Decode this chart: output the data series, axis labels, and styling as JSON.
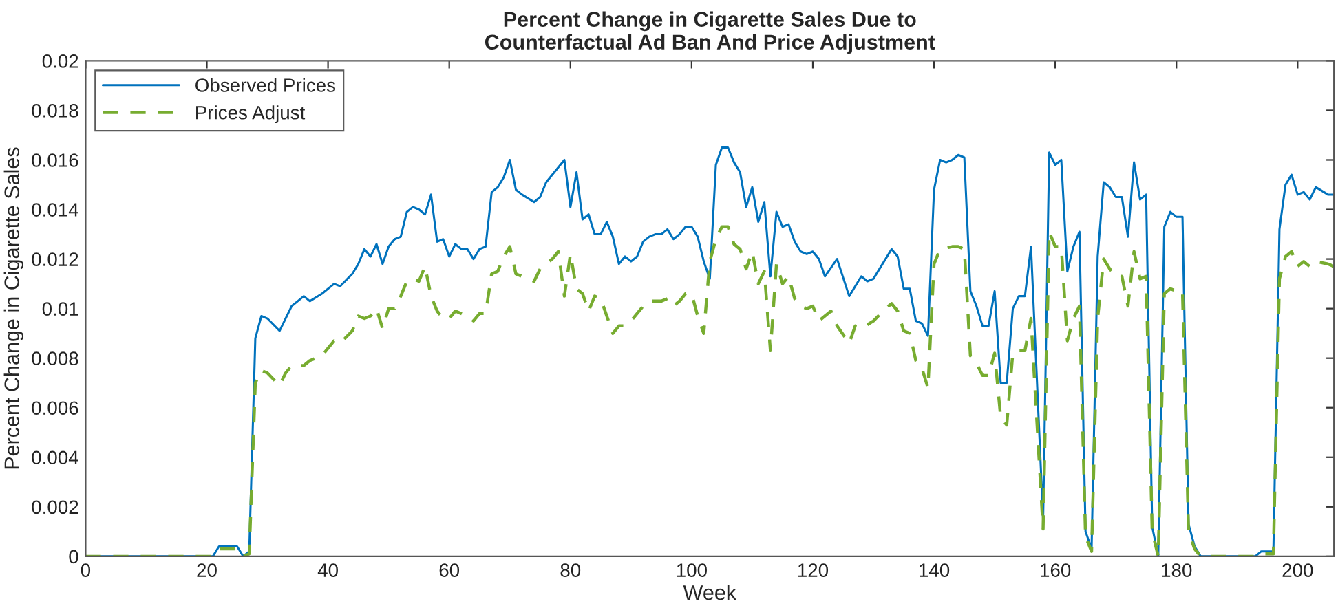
{
  "chart_data": {
    "type": "line",
    "title": "Percent Change in Cigarette Sales Due to\nCounterfactual Ad Ban And Price Adjustment",
    "xlabel": "Week",
    "ylabel": "Percent Change in Cigarette Sales",
    "xlim": [
      0,
      206
    ],
    "xticks": [
      0,
      20,
      40,
      60,
      80,
      100,
      120,
      140,
      160,
      180,
      200
    ],
    "ylim": [
      0,
      0.02
    ],
    "yticks": [
      0,
      0.002,
      0.004,
      0.006,
      0.008,
      0.01,
      0.012,
      0.014,
      0.016,
      0.018,
      0.02
    ],
    "grid": false,
    "legend": "top left",
    "marker": "none",
    "series": [
      {
        "name": "Observed Prices",
        "color": "#0072bd",
        "line_style": "solid",
        "x": [
          0,
          21,
          22,
          25,
          26,
          27,
          28,
          29,
          30,
          32,
          34,
          35,
          36,
          37,
          39,
          41,
          42,
          44,
          45,
          46,
          47,
          48,
          49,
          50,
          51,
          52,
          53,
          54,
          55,
          56,
          57,
          58,
          59,
          60,
          61,
          62,
          63,
          64,
          65,
          66,
          67,
          68,
          69,
          70,
          71,
          72,
          74,
          75,
          76,
          78,
          79,
          80,
          81,
          82,
          83,
          84,
          85,
          86,
          87,
          88,
          89,
          90,
          91,
          92,
          93,
          94,
          95,
          96,
          97,
          98,
          99,
          100,
          101,
          102,
          103,
          104,
          105,
          106,
          107,
          108,
          109,
          110,
          111,
          112,
          113,
          114,
          115,
          116,
          117,
          118,
          119,
          120,
          121,
          122,
          124,
          126,
          128,
          129,
          130,
          132,
          133,
          134,
          135,
          136,
          137,
          138,
          139,
          140,
          141,
          142,
          143,
          144,
          145,
          146,
          147,
          148,
          149,
          150,
          151,
          152,
          153,
          154,
          155,
          156,
          158,
          159,
          160,
          161,
          162,
          163,
          164,
          165,
          166,
          167,
          168,
          169,
          170,
          171,
          172,
          173,
          174,
          175,
          176,
          177,
          178,
          179,
          180,
          181,
          182,
          183,
          184,
          193,
          194,
          196,
          197,
          198,
          199,
          200,
          201,
          202,
          203,
          205,
          206
        ],
        "values": [
          0,
          0,
          0.0004,
          0.0004,
          0,
          0.0002,
          0.0088,
          0.0097,
          0.0096,
          0.0091,
          0.0101,
          0.0103,
          0.0105,
          0.0103,
          0.0106,
          0.011,
          0.0109,
          0.0114,
          0.0118,
          0.0124,
          0.0121,
          0.0126,
          0.0118,
          0.0125,
          0.0128,
          0.0129,
          0.0139,
          0.0141,
          0.014,
          0.0138,
          0.0146,
          0.0127,
          0.0128,
          0.0121,
          0.0126,
          0.0124,
          0.0124,
          0.012,
          0.0124,
          0.0125,
          0.0147,
          0.0149,
          0.0153,
          0.016,
          0.0148,
          0.0146,
          0.0143,
          0.0145,
          0.0151,
          0.0157,
          0.016,
          0.0141,
          0.0155,
          0.0136,
          0.0138,
          0.013,
          0.013,
          0.0135,
          0.0129,
          0.0118,
          0.0121,
          0.0119,
          0.0121,
          0.0127,
          0.0129,
          0.013,
          0.013,
          0.0132,
          0.0128,
          0.013,
          0.0133,
          0.0133,
          0.0129,
          0.0119,
          0.0112,
          0.0158,
          0.0165,
          0.0165,
          0.0159,
          0.0155,
          0.0141,
          0.0149,
          0.0135,
          0.0143,
          0.0113,
          0.0139,
          0.0133,
          0.0134,
          0.0127,
          0.0123,
          0.0122,
          0.0123,
          0.012,
          0.0113,
          0.012,
          0.0105,
          0.0113,
          0.0111,
          0.0112,
          0.012,
          0.0124,
          0.0121,
          0.0108,
          0.0108,
          0.0095,
          0.0094,
          0.0089,
          0.0148,
          0.016,
          0.0159,
          0.016,
          0.0162,
          0.0161,
          0.0107,
          0.0101,
          0.0093,
          0.0093,
          0.0107,
          0.007,
          0.007,
          0.01,
          0.0105,
          0.0105,
          0.0125,
          0.0015,
          0.0163,
          0.0158,
          0.016,
          0.0115,
          0.0125,
          0.0131,
          0.001,
          0.0003,
          0.0121,
          0.0151,
          0.0149,
          0.0145,
          0.0145,
          0.0129,
          0.0159,
          0.0144,
          0.0146,
          0.0012,
          0,
          0.0133,
          0.0139,
          0.0137,
          0.0137,
          0.0013,
          0.0004,
          0,
          0,
          0.0002,
          0.0002,
          0.0132,
          0.015,
          0.0154,
          0.0146,
          0.0147,
          0.0144,
          0.0149,
          0.0146,
          0.0146
        ]
      },
      {
        "name": "Prices Adjust",
        "color": "#77ac30",
        "line_style": "dashed",
        "x": [
          0,
          21,
          22,
          25,
          26,
          27,
          28,
          29,
          30,
          32,
          33,
          34,
          36,
          37,
          39,
          41,
          42,
          44,
          45,
          46,
          47,
          48,
          49,
          50,
          51,
          52,
          53,
          54,
          55,
          56,
          57,
          58,
          59,
          60,
          61,
          62,
          63,
          64,
          65,
          66,
          67,
          68,
          69,
          70,
          71,
          72,
          74,
          75,
          77,
          78,
          79,
          80,
          81,
          82,
          83,
          84,
          85,
          86,
          87,
          88,
          89,
          90,
          92,
          93,
          95,
          96,
          97,
          98,
          99,
          100,
          101,
          102,
          103,
          104,
          105,
          106,
          107,
          108,
          109,
          110,
          111,
          112,
          113,
          114,
          115,
          116,
          117,
          118,
          119,
          120,
          121,
          123,
          124,
          126,
          127,
          128,
          130,
          132,
          133,
          134,
          135,
          136,
          137,
          138,
          139,
          140,
          141,
          143,
          144,
          145,
          146,
          147,
          148,
          149,
          150,
          151,
          152,
          153,
          154,
          155,
          156,
          158,
          159,
          160,
          161,
          162,
          163,
          164,
          165,
          166,
          167,
          168,
          169,
          170,
          171,
          172,
          173,
          174,
          175,
          176,
          177,
          178,
          179,
          180,
          181,
          182,
          183,
          184,
          193,
          194,
          196,
          197,
          198,
          199,
          200,
          201,
          202,
          203,
          205,
          206
        ],
        "values": [
          0,
          0,
          0.0003,
          0.0003,
          0,
          0.0001,
          0.007,
          0.0075,
          0.0074,
          0.0069,
          0.0074,
          0.0077,
          0.0077,
          0.0079,
          0.0081,
          0.0087,
          0.0086,
          0.0091,
          0.0097,
          0.0096,
          0.0097,
          0.01,
          0.0092,
          0.01,
          0.01,
          0.0105,
          0.0111,
          0.0112,
          0.0111,
          0.0117,
          0.0105,
          0.0099,
          0.0096,
          0.0096,
          0.0099,
          0.0098,
          0.0097,
          0.0095,
          0.0098,
          0.0098,
          0.0114,
          0.0115,
          0.0121,
          0.0125,
          0.0114,
          0.0113,
          0.0111,
          0.0116,
          0.012,
          0.0123,
          0.0105,
          0.0122,
          0.0108,
          0.0106,
          0.0099,
          0.0105,
          0.0104,
          0.0097,
          0.009,
          0.0093,
          0.0093,
          0.0095,
          0.0101,
          0.0103,
          0.0103,
          0.0104,
          0.0101,
          0.0103,
          0.0106,
          0.0106,
          0.0097,
          0.009,
          0.0119,
          0.0128,
          0.0133,
          0.0133,
          0.0126,
          0.0124,
          0.0116,
          0.0123,
          0.011,
          0.0115,
          0.0083,
          0.0118,
          0.011,
          0.0113,
          0.0104,
          0.0101,
          0.01,
          0.0101,
          0.0095,
          0.0099,
          0.0093,
          0.0086,
          0.0093,
          0.0092,
          0.0095,
          0.01,
          0.0102,
          0.0099,
          0.0091,
          0.009,
          0.0079,
          0.0076,
          0.0068,
          0.0118,
          0.0124,
          0.0125,
          0.0125,
          0.0124,
          0.0081,
          0.0078,
          0.0073,
          0.0073,
          0.0082,
          0.0056,
          0.0053,
          0.0082,
          0.0083,
          0.0083,
          0.0096,
          0.0011,
          0.0131,
          0.0125,
          0.0125,
          0.0087,
          0.0096,
          0.0101,
          0.0008,
          0.0002,
          0.0096,
          0.012,
          0.0116,
          0.0113,
          0.0113,
          0.0101,
          0.0123,
          0.0112,
          0.0113,
          0.001,
          0,
          0.0106,
          0.0108,
          0.0107,
          0.0107,
          0.001,
          0.0003,
          0,
          0,
          0.0001,
          0.0001,
          0.0112,
          0.0121,
          0.0123,
          0.0117,
          0.0119,
          0.0117,
          0.0119,
          0.0118,
          0.0117
        ]
      }
    ]
  }
}
